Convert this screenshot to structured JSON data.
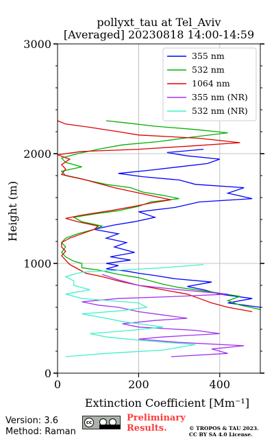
{
  "title": {
    "line1": "pollyxt_tau at Tel_Aviv",
    "line2": "[Averaged] 20230818 14:00-14:59"
  },
  "footer": {
    "version": "Version: 3.6",
    "method": "Method: Raman",
    "preliminary_line1": "Preliminary",
    "preliminary_line2": "Results.",
    "copyright_line1": "© TROPOS & TAU 2023.",
    "copyright_line2": "CC BY SA 4.0 License.",
    "badge_text": "cc"
  },
  "chart_data": {
    "type": "line",
    "xlabel": "Extinction Coefficient [Mm⁻¹]",
    "ylabel": "Height (m)",
    "xlim": [
      0,
      500
    ],
    "ylim": [
      0,
      3000
    ],
    "xticks": [
      0,
      200,
      400
    ],
    "yticks": [
      0,
      1000,
      2000,
      3000
    ],
    "grid": true,
    "legend_position": "top-right",
    "series": [
      {
        "name": "355 nm",
        "color": "#0000ff",
        "points": [
          [
            620,
            530
          ],
          [
            560,
            560
          ],
          [
            500,
            600
          ],
          [
            420,
            640
          ],
          [
            480,
            680
          ],
          [
            400,
            720
          ],
          [
            360,
            760
          ],
          [
            320,
            790
          ],
          [
            380,
            830
          ],
          [
            290,
            860
          ],
          [
            240,
            890
          ],
          [
            200,
            910
          ],
          [
            170,
            930
          ],
          [
            120,
            950
          ],
          [
            150,
            980
          ],
          [
            120,
            1000
          ],
          [
            180,
            1030
          ],
          [
            130,
            1060
          ],
          [
            190,
            1100
          ],
          [
            140,
            1150
          ],
          [
            170,
            1190
          ],
          [
            120,
            1230
          ],
          [
            150,
            1270
          ],
          [
            90,
            1310
          ],
          [
            140,
            1350
          ],
          [
            190,
            1380
          ],
          [
            240,
            1420
          ],
          [
            200,
            1470
          ],
          [
            290,
            1510
          ],
          [
            350,
            1560
          ],
          [
            480,
            1590
          ],
          [
            420,
            1640
          ],
          [
            460,
            1690
          ],
          [
            340,
            1720
          ],
          [
            300,
            1760
          ],
          [
            210,
            1790
          ],
          [
            150,
            1820
          ],
          [
            230,
            1850
          ],
          [
            300,
            1880
          ],
          [
            370,
            1910
          ],
          [
            400,
            1950
          ],
          [
            320,
            1980
          ],
          [
            270,
            2010
          ],
          [
            360,
            2040
          ]
        ]
      },
      {
        "name": "532 nm",
        "color": "#00b000",
        "points": [
          [
            560,
            540
          ],
          [
            500,
            580
          ],
          [
            450,
            620
          ],
          [
            420,
            660
          ],
          [
            450,
            700
          ],
          [
            380,
            740
          ],
          [
            300,
            780
          ],
          [
            260,
            810
          ],
          [
            230,
            840
          ],
          [
            200,
            870
          ],
          [
            150,
            900
          ],
          [
            100,
            940
          ],
          [
            60,
            960
          ],
          [
            60,
            1000
          ],
          [
            40,
            1020
          ],
          [
            20,
            1060
          ],
          [
            10,
            1100
          ],
          [
            20,
            1150
          ],
          [
            10,
            1190
          ],
          [
            20,
            1230
          ],
          [
            50,
            1270
          ],
          [
            90,
            1310
          ],
          [
            110,
            1340
          ],
          [
            60,
            1380
          ],
          [
            40,
            1420
          ],
          [
            90,
            1450
          ],
          [
            150,
            1480
          ],
          [
            200,
            1520
          ],
          [
            230,
            1560
          ],
          [
            300,
            1590
          ],
          [
            260,
            1620
          ],
          [
            210,
            1650
          ],
          [
            180,
            1690
          ],
          [
            120,
            1720
          ],
          [
            70,
            1760
          ],
          [
            20,
            1800
          ],
          [
            10,
            1840
          ],
          [
            60,
            1880
          ],
          [
            20,
            1920
          ],
          [
            10,
            1960
          ],
          [
            50,
            2000
          ],
          [
            100,
            2040
          ],
          [
            160,
            2080
          ],
          [
            250,
            2110
          ],
          [
            330,
            2150
          ],
          [
            420,
            2190
          ],
          [
            340,
            2220
          ],
          [
            240,
            2250
          ],
          [
            170,
            2280
          ],
          [
            120,
            2300
          ]
        ]
      },
      {
        "name": "1064 nm",
        "color": "#dd0000",
        "points": [
          [
            480,
            560
          ],
          [
            420,
            600
          ],
          [
            380,
            640
          ],
          [
            350,
            680
          ],
          [
            320,
            720
          ],
          [
            260,
            760
          ],
          [
            200,
            800
          ],
          [
            150,
            840
          ],
          [
            110,
            880
          ],
          [
            70,
            910
          ],
          [
            50,
            950
          ],
          [
            30,
            990
          ],
          [
            20,
            1030
          ],
          [
            10,
            1070
          ],
          [
            20,
            1110
          ],
          [
            10,
            1150
          ],
          [
            10,
            1190
          ],
          [
            30,
            1230
          ],
          [
            60,
            1270
          ],
          [
            90,
            1310
          ],
          [
            100,
            1340
          ],
          [
            50,
            1380
          ],
          [
            20,
            1410
          ],
          [
            60,
            1440
          ],
          [
            130,
            1480
          ],
          [
            190,
            1520
          ],
          [
            230,
            1550
          ],
          [
            280,
            1580
          ],
          [
            240,
            1610
          ],
          [
            190,
            1650
          ],
          [
            140,
            1690
          ],
          [
            100,
            1730
          ],
          [
            60,
            1770
          ],
          [
            10,
            1810
          ],
          [
            20,
            1860
          ],
          [
            10,
            1900
          ],
          [
            30,
            1950
          ],
          [
            0,
            1990
          ],
          [
            60,
            2020
          ],
          [
            200,
            2040
          ],
          [
            330,
            2070
          ],
          [
            450,
            2100
          ],
          [
            350,
            2140
          ],
          [
            200,
            2170
          ],
          [
            150,
            2200
          ],
          [
            80,
            2240
          ],
          [
            20,
            2270
          ],
          [
            0,
            2300
          ]
        ]
      },
      {
        "name": "355 nm (NR)",
        "color": "#a030f0",
        "points": [
          [
            280,
            150
          ],
          [
            420,
            180
          ],
          [
            380,
            220
          ],
          [
            460,
            250
          ],
          [
            300,
            280
          ],
          [
            200,
            310
          ],
          [
            260,
            330
          ],
          [
            400,
            360
          ],
          [
            340,
            390
          ],
          [
            200,
            420
          ],
          [
            160,
            450
          ],
          [
            240,
            480
          ],
          [
            320,
            500
          ],
          [
            260,
            530
          ],
          [
            200,
            560
          ],
          [
            150,
            600
          ],
          [
            100,
            620
          ],
          [
            60,
            650
          ],
          [
            150,
            680
          ],
          [
            300,
            700
          ],
          [
            420,
            720
          ],
          [
            300,
            760
          ],
          [
            200,
            800
          ],
          [
            150,
            850
          ],
          [
            110,
            900
          ]
        ]
      },
      {
        "name": "532 nm (NR)",
        "color": "#40f0c8",
        "points": [
          [
            20,
            150
          ],
          [
            120,
            180
          ],
          [
            260,
            210
          ],
          [
            340,
            260
          ],
          [
            200,
            300
          ],
          [
            120,
            330
          ],
          [
            80,
            360
          ],
          [
            180,
            390
          ],
          [
            260,
            420
          ],
          [
            200,
            450
          ],
          [
            160,
            470
          ],
          [
            120,
            500
          ],
          [
            60,
            540
          ],
          [
            160,
            570
          ],
          [
            220,
            600
          ],
          [
            200,
            640
          ],
          [
            60,
            680
          ],
          [
            20,
            720
          ],
          [
            80,
            760
          ],
          [
            40,
            800
          ],
          [
            40,
            840
          ],
          [
            20,
            880
          ],
          [
            60,
            920
          ],
          [
            160,
            940
          ],
          [
            260,
            960
          ],
          [
            360,
            990
          ]
        ]
      }
    ]
  }
}
